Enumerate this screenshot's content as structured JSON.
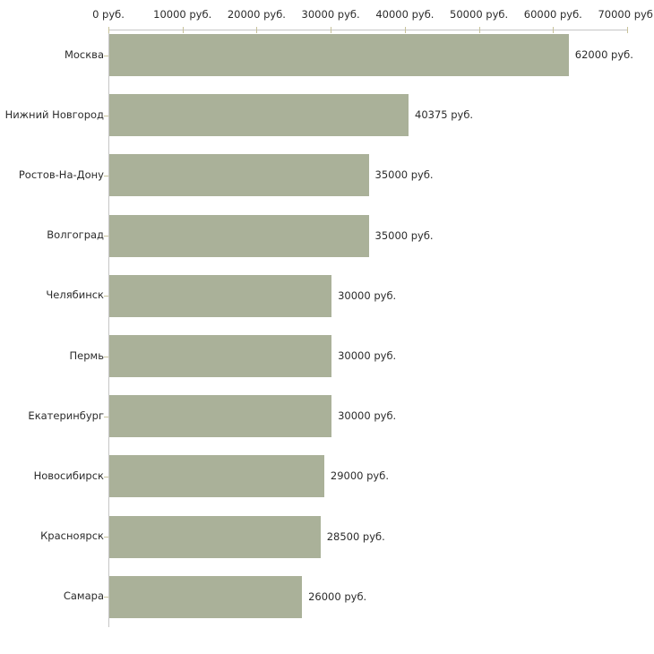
{
  "chart_data": {
    "type": "bar",
    "orientation": "horizontal",
    "title": "",
    "xlabel": "",
    "ylabel": "",
    "unit": "руб.",
    "categories": [
      "Москва",
      "Нижний Новгород",
      "Ростов-На-Дону",
      "Волгоград",
      "Челябинск",
      "Пермь",
      "Екатеринбург",
      "Новосибирск",
      "Красноярск",
      "Самара"
    ],
    "values": [
      62000,
      40375,
      35000,
      35000,
      30000,
      30000,
      30000,
      29000,
      28500,
      26000
    ],
    "value_labels": [
      "62000 руб.",
      "40375 руб.",
      "35000 руб.",
      "35000 руб.",
      "30000 руб.",
      "30000 руб.",
      "30000 руб.",
      "29000 руб.",
      "28500 руб.",
      "26000 руб."
    ],
    "x_ticks": [
      0,
      10000,
      20000,
      30000,
      40000,
      50000,
      60000,
      70000
    ],
    "x_tick_labels": [
      "0 руб.",
      "10000 руб.",
      "20000 руб.",
      "30000 руб.",
      "40000 руб.",
      "50000 руб.",
      "60000 руб.",
      "70000 руб."
    ],
    "xlim": [
      0,
      70000
    ],
    "axis_position": "top",
    "grid": false,
    "legend": false,
    "colors": {
      "bar": "#aab199",
      "axis_line": "#c6c6c6",
      "tick_mark": "#c8c29a",
      "text": "#2b2b2b",
      "background": "#ffffff"
    }
  }
}
